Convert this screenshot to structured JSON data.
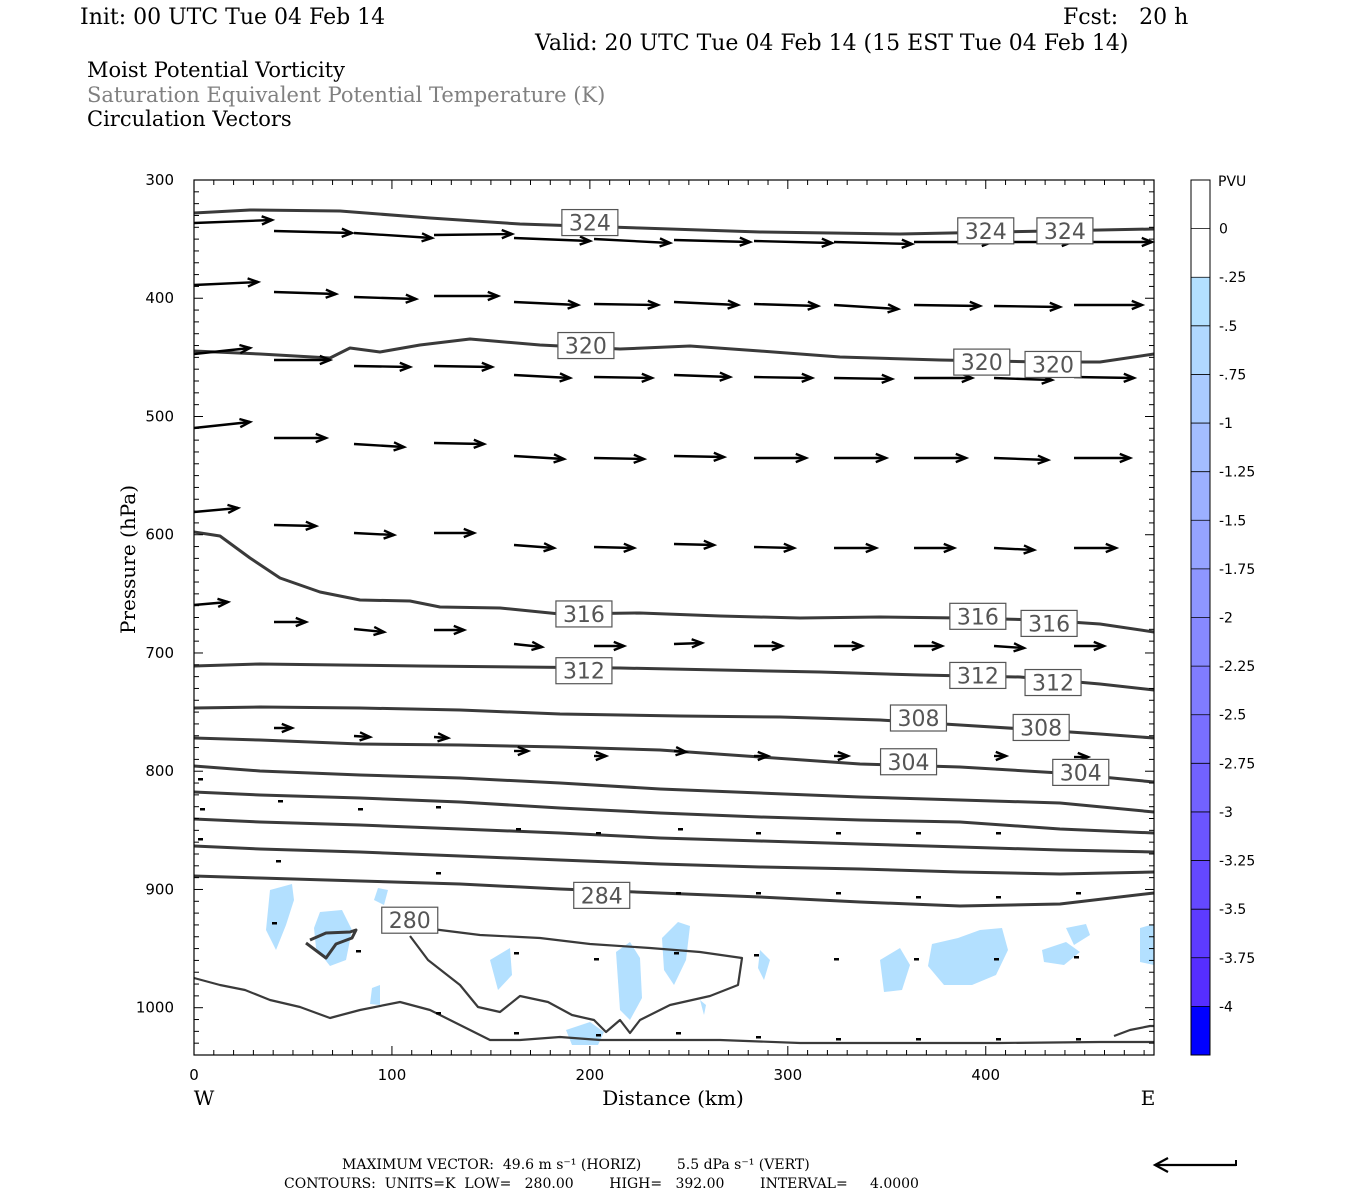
{
  "header": {
    "init": "Init: 00 UTC Tue 04 Feb 14",
    "fcst": "Fcst:   20 h",
    "valid": "Valid: 20 UTC Tue 04 Feb 14 (15 EST Tue 04 Feb 14)",
    "field1": "Moist Potential Vorticity",
    "field2": "Saturation Equivalent Potential Temperature (K)",
    "field3": "Circulation Vectors"
  },
  "footer": {
    "max_vector": "MAXIMUM VECTOR:  49.6 m s⁻¹ (HORIZ)        5.5 dPa s⁻¹ (VERT)",
    "contours": "CONTOURS:  UNITS=K  LOW=   280.00        HIGH=   392.00        INTERVAL=     4.0000"
  },
  "colors": {
    "contour": "#3a3a3a",
    "arrow": "#000000",
    "mpv_fill": "#b3e0ff"
  },
  "chart_data": {
    "type": "cross-section",
    "xlabel": "Distance (km)",
    "ylabel": "Pressure (hPa)",
    "xlim": [
      0,
      485
    ],
    "ylim": [
      1040,
      300
    ],
    "x_ticks": [
      0,
      100,
      200,
      300,
      400
    ],
    "y_ticks": [
      300,
      400,
      500,
      600,
      700,
      800,
      900,
      1000
    ],
    "x_end_labels": {
      "left": "W",
      "right": "E"
    },
    "contour_levels": [
      280,
      284,
      288,
      292,
      296,
      300,
      304,
      308,
      312,
      316,
      320,
      324
    ],
    "contour_labels": [
      {
        "value": "324",
        "x": 200,
        "p": 336
      },
      {
        "value": "324",
        "x": 400,
        "p": 343
      },
      {
        "value": "324",
        "x": 440,
        "p": 343
      },
      {
        "value": "320",
        "x": 198,
        "p": 440
      },
      {
        "value": "320",
        "x": 398,
        "p": 454
      },
      {
        "value": "320",
        "x": 434,
        "p": 456
      },
      {
        "value": "316",
        "x": 197,
        "p": 667
      },
      {
        "value": "316",
        "x": 396,
        "p": 669
      },
      {
        "value": "316",
        "x": 432,
        "p": 675
      },
      {
        "value": "312",
        "x": 197,
        "p": 715
      },
      {
        "value": "312",
        "x": 396,
        "p": 719
      },
      {
        "value": "312",
        "x": 434,
        "p": 725
      },
      {
        "value": "308",
        "x": 366,
        "p": 755
      },
      {
        "value": "308",
        "x": 428,
        "p": 763
      },
      {
        "value": "304",
        "x": 361,
        "p": 792
      },
      {
        "value": "304",
        "x": 448,
        "p": 801
      },
      {
        "value": "284",
        "x": 206,
        "p": 905
      },
      {
        "value": "280",
        "x": 109,
        "p": 926
      }
    ],
    "colorbar": {
      "title": "PVU",
      "levels": [
        "0",
        "-.25",
        "-.5",
        "-.75",
        "-1",
        "-1.25",
        "-1.5",
        "-1.75",
        "-2",
        "-2.25",
        "-2.5",
        "-2.75",
        "-3",
        "-3.25",
        "-3.5",
        "-3.75",
        "-4"
      ],
      "colors": [
        "#ffffff",
        "#ffffff",
        "#b3e0ff",
        "#b0d8ff",
        "#aacbff",
        "#a3bdff",
        "#9cb0ff",
        "#95a3ff",
        "#8e96ff",
        "#8789ff",
        "#807cff",
        "#796fff",
        "#7262ff",
        "#6b55ff",
        "#6448ff",
        "#5d3bff",
        "#562eff",
        "#0000ff"
      ]
    }
  }
}
